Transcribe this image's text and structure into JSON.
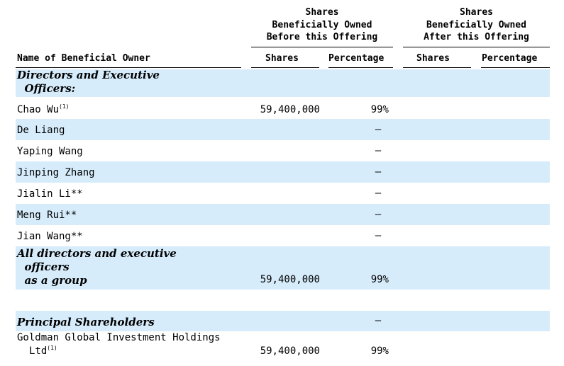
{
  "header": {
    "before_group": "Shares\nBeneficially Owned\nBefore this Offering",
    "after_group": "Shares\nBeneficially Owned\nAfter this Offering",
    "col_name": "Name of Beneficial Owner",
    "col_shares_before": "Shares",
    "col_pct_before": "Percentage",
    "col_shares_after": "Shares",
    "col_pct_after": "Percentage"
  },
  "sections": {
    "directors": "Directors and Executive\n  Officers:",
    "all_group": "All directors and executive\n  officers\n  as a group",
    "principal": "Principal Shareholders"
  },
  "rows": [
    {
      "name": "Chao Wu",
      "note": "(1)",
      "shares": "59,400,000",
      "pct": "99%"
    },
    {
      "name": "De Liang",
      "note": "",
      "shares": "",
      "pct": "—"
    },
    {
      "name": "Yaping Wang",
      "note": "",
      "shares": "",
      "pct": "—"
    },
    {
      "name": "Jinping Zhang",
      "note": "",
      "shares": "",
      "pct": "—"
    },
    {
      "name": "Jialin Li**",
      "note": "",
      "shares": "",
      "pct": "—"
    },
    {
      "name": "Meng Rui**",
      "note": "",
      "shares": "",
      "pct": "—"
    },
    {
      "name": "Jian Wang**",
      "note": "",
      "shares": "",
      "pct": "—"
    }
  ],
  "all_group_values": {
    "shares": "59,400,000",
    "pct": "99%"
  },
  "principal_dash": "—",
  "goldman": {
    "name_line1": "Goldman Global Investment Holdings",
    "name_line2": "Ltd",
    "note": "(1)",
    "shares": "59,400,000",
    "pct": "99%"
  },
  "colors": {
    "band": "#d6ecfb"
  }
}
